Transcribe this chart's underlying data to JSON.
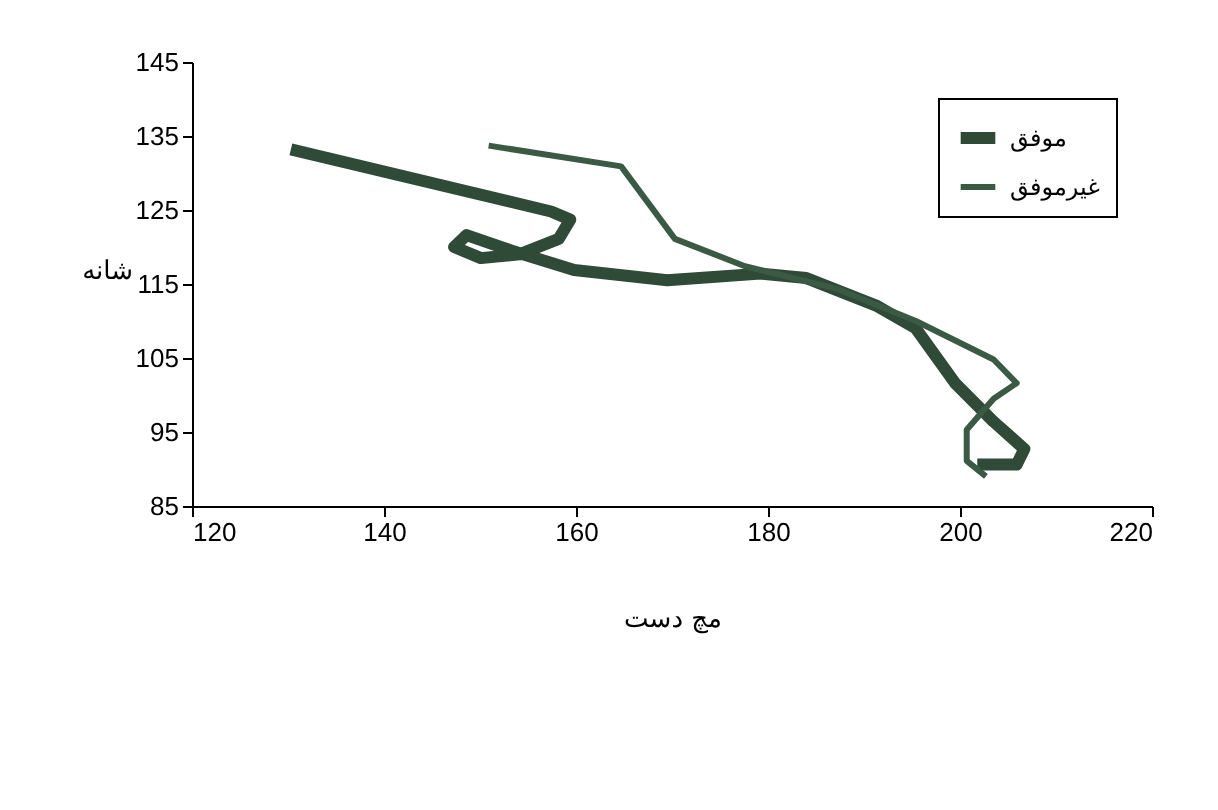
{
  "chart_data": {
    "type": "line",
    "xlabel": "مچ دست",
    "ylabel": "شانه",
    "xlim": [
      120,
      220
    ],
    "xticks": [
      120,
      140,
      160,
      180,
      200,
      220
    ],
    "ylim": [
      85,
      145
    ],
    "yticks": [
      85,
      95,
      105,
      115,
      125,
      135,
      145
    ],
    "grid": false,
    "legend": "top right",
    "marker": "none",
    "line_style": "solid",
    "series": [
      {
        "name": "موفق",
        "color": "#2f4a37",
        "x": [
          130.3,
          157.4,
          159.4,
          158.2,
          154.1,
          150.1,
          147.3,
          148.6,
          153.3,
          159.8,
          169.5,
          179.2,
          184,
          191.4,
          195.4,
          199.5,
          203.5,
          206.7,
          205.9,
          201.8
        ],
        "values": [
          133.2,
          124.8,
          123.7,
          121.1,
          119,
          118.5,
          120,
          121.6,
          119.5,
          116.9,
          115.5,
          116.4,
          115.8,
          112,
          109,
          101.6,
          96.4,
          92.7,
          90.6,
          90.6
        ]
      },
      {
        "name": "غیرموفق",
        "color": "#3a5a44",
        "x": [
          150.9,
          164.7,
          170.3,
          177.6,
          187.3,
          195.4,
          203.5,
          205.9,
          203.5,
          200.7,
          200.7,
          202.7
        ],
        "values": [
          133.7,
          130.9,
          121.1,
          117.4,
          114.3,
          110,
          104.8,
          101.6,
          99.5,
          95.3,
          91.1,
          89
        ]
      }
    ]
  }
}
